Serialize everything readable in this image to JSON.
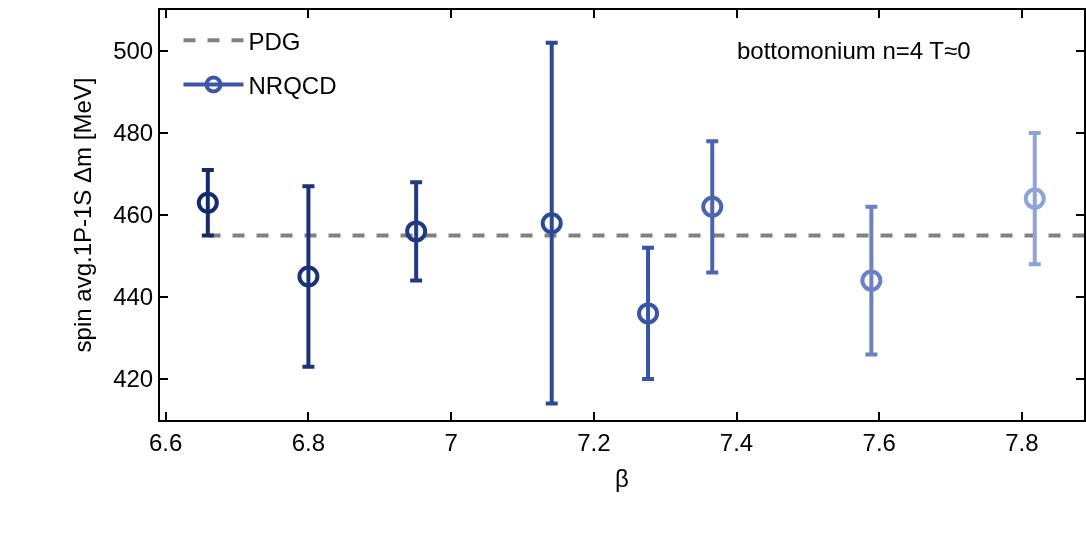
{
  "chart_data": {
    "type": "scatter",
    "xlabel": "β",
    "ylabel": "spin avg.1P-1S Δm [MeV]",
    "xlim": [
      6.592,
      7.887
    ],
    "ylim": [
      410,
      510
    ],
    "xticks": [
      {
        "value": 6.6,
        "label": "6.6"
      },
      {
        "value": 6.8,
        "label": "6.8"
      },
      7,
      {
        "value": 7.2,
        "label": "7.2"
      },
      {
        "value": 7.4,
        "label": "7.4"
      },
      {
        "value": 7.6,
        "label": "7.6"
      },
      {
        "value": 7.8,
        "label": "7.8"
      }
    ],
    "yticks": [
      420,
      440,
      460,
      480,
      500
    ],
    "legend": "top left",
    "marker": "circle",
    "annotations": [
      "bottomonium n=4 T≈0"
    ],
    "series": [
      {
        "name": "PDG",
        "type": "line",
        "line_style": "dashed",
        "marker": "none",
        "color": "#808080",
        "x": [
          6.66,
          7.887
        ],
        "values": [
          455,
          455
        ]
      },
      {
        "name": "NRQCD",
        "color": "#3d57a5",
        "x": [
          6.659,
          6.8,
          6.951,
          7.141,
          7.276,
          7.366,
          7.589,
          7.818
        ],
        "values": [
          463,
          445,
          456,
          458,
          436,
          462,
          444,
          464
        ],
        "errors": [
          [
            455,
            471
          ],
          [
            423,
            467
          ],
          [
            444,
            468
          ],
          [
            414,
            502
          ],
          [
            420,
            452
          ],
          [
            446,
            478
          ],
          [
            426,
            462
          ],
          [
            448,
            480
          ]
        ],
        "colors": [
          "#142a6e",
          "#1a3278",
          "#203a84",
          "#2c4a94",
          "#3a56a2",
          "#4a64ae",
          "#6a82c4",
          "#8ea3d8"
        ]
      }
    ]
  }
}
